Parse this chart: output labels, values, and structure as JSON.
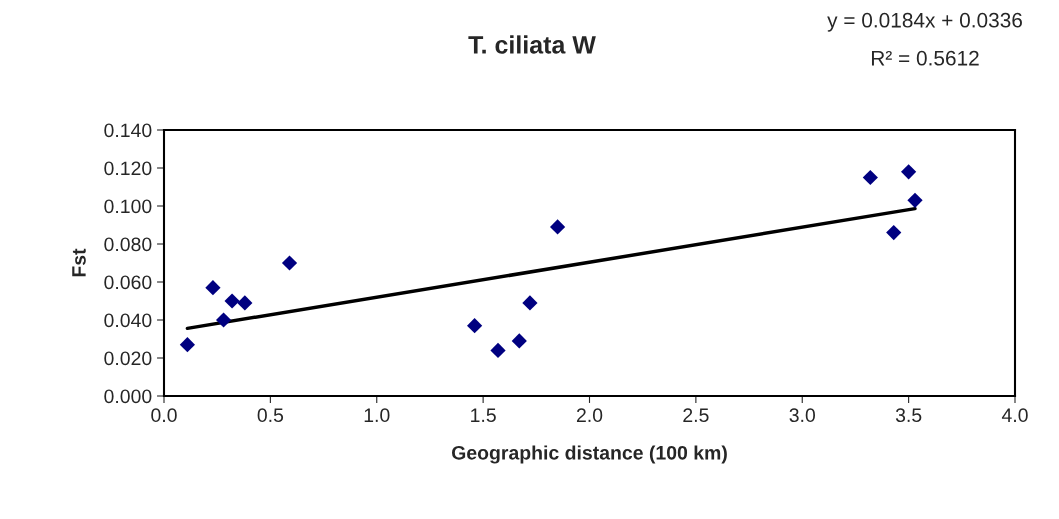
{
  "chart_data": {
    "type": "scatter",
    "title": "T. ciliata W",
    "xlabel": "Geographic distance (100 km)",
    "ylabel": "Fst",
    "annotations": [
      "y = 0.0184x + 0.0336",
      "R² = 0.5612"
    ],
    "series": [
      {
        "color": "#000080",
        "marker": "diamond",
        "x": [
          0.11,
          0.23,
          0.28,
          0.32,
          0.38,
          0.59,
          1.46,
          1.57,
          1.67,
          1.72,
          1.85,
          3.32,
          3.43,
          3.5,
          3.53
        ],
        "values": [
          0.027,
          0.057,
          0.04,
          0.05,
          0.049,
          0.07,
          0.037,
          0.024,
          0.029,
          0.049,
          0.089,
          0.115,
          0.086,
          0.118,
          0.103
        ]
      },
      {
        "type": "line",
        "color": "#000000",
        "marker": "none",
        "line_style": "solid",
        "x": [
          0.11,
          3.53
        ],
        "values": [
          0.0356,
          0.0986
        ]
      }
    ],
    "xlim": [
      0,
      4
    ],
    "xticks": [
      {
        "value": 0,
        "label": "0.0"
      },
      {
        "value": 0.5,
        "label": "0.5"
      },
      {
        "value": 1,
        "label": "1.0"
      },
      {
        "value": 1.5,
        "label": "1.5"
      },
      {
        "value": 2,
        "label": "2.0"
      },
      {
        "value": 2.5,
        "label": "2.5"
      },
      {
        "value": 3,
        "label": "3.0"
      },
      {
        "value": 3.5,
        "label": "3.5"
      },
      {
        "value": 4,
        "label": "4.0"
      }
    ],
    "ylim": [
      0,
      0.14
    ],
    "yticks": [
      {
        "value": 0,
        "label": "0.000"
      },
      {
        "value": 0.02,
        "label": "0.020"
      },
      {
        "value": 0.04,
        "label": "0.040"
      },
      {
        "value": 0.06,
        "label": "0.060"
      },
      {
        "value": 0.08,
        "label": "0.080"
      },
      {
        "value": 0.1,
        "label": "0.100"
      },
      {
        "value": 0.12,
        "label": "0.120"
      },
      {
        "value": 0.14,
        "label": "0.140"
      }
    ],
    "grid": false,
    "legend": false
  }
}
